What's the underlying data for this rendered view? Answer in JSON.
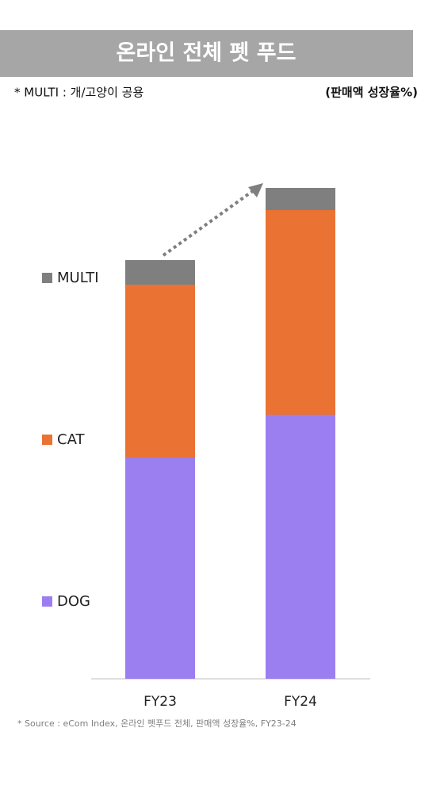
{
  "chart_data": {
    "type": "stacked_bar",
    "title": "온라인 전체 펫 푸드",
    "subtitle": "* MULTI : 개/고양이 공용",
    "unit_note": "(판매액 성장율%)",
    "source": "* Source : eCom Index, 온라인 펫푸드 전체, 판매액 성장율%, FY23-24",
    "categories": [
      "FY23",
      "FY24"
    ],
    "series": [
      {
        "name": "DOG",
        "color": "#9b7ff0",
        "values": [
          279,
          333
        ]
      },
      {
        "name": "CAT",
        "color": "#ea7232",
        "values": [
          218,
          258
        ]
      },
      {
        "name": "MULTI",
        "color": "#7f7f7f",
        "values": [
          31,
          28
        ]
      }
    ],
    "ylim": [
      0,
      620
    ]
  }
}
